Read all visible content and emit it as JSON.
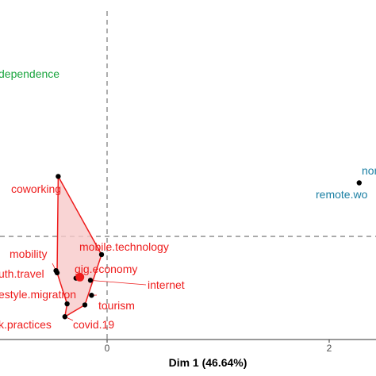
{
  "chart_data": {
    "type": "scatter",
    "title": "",
    "xlabel": "Dim 1 (46.64%)",
    "ylabel": "",
    "x_ticks": [
      0,
      2
    ],
    "xlim": [
      -0.95,
      2.4
    ],
    "ylim": [
      -1.05,
      2.1
    ],
    "reference_lines": {
      "x": 0,
      "y": 0
    },
    "grid": false,
    "colors": {
      "cluster_red": "#ee1c1c",
      "cluster_fill": "#f7c9c9",
      "blue_cluster": "#1a7fa3",
      "green_cluster": "#1aa53e",
      "dashed": "#777777",
      "axis": "#333333"
    },
    "clusters": [
      {
        "name": "",
        "color": "#ee1c1c",
        "centroid": {
          "x": -0.245,
          "y": -0.38
        },
        "hull": [
          "coworking",
          "mobile.technology",
          "tourism",
          "covid.19",
          "work.practices",
          "youth.travel"
        ],
        "points": [
          {
            "label": "coworking",
            "x": -0.44,
            "y": 0.56
          },
          {
            "label": "mobile.technology",
            "x": -0.05,
            "y": -0.17
          },
          {
            "label": "mobility",
            "x": -0.46,
            "y": -0.32
          },
          {
            "label": "youth.travel",
            "x": -0.45,
            "y": -0.34
          },
          {
            "label": "gig.economy",
            "x": -0.28,
            "y": -0.39
          },
          {
            "label": "internet",
            "x": -0.15,
            "y": -0.41
          },
          {
            "label": "lifestyle.migration",
            "x": -0.14,
            "y": -0.55
          },
          {
            "label": "tourism",
            "x": -0.2,
            "y": -0.64
          },
          {
            "label": "work.practices",
            "x": -0.36,
            "y": -0.63
          },
          {
            "label": "covid.19",
            "x": -0.38,
            "y": -0.75
          }
        ]
      },
      {
        "name": "",
        "color": "#1a7fa3",
        "points": [
          {
            "label": "nomad",
            "x": 2.27,
            "y": 0.5
          }
        ],
        "label_texts": [
          "noma",
          "remote.wo"
        ]
      },
      {
        "name": "",
        "color": "#1aa53e",
        "points": [],
        "label_texts": [
          "dependence"
        ]
      }
    ],
    "labels": {
      "coworking": "coworking",
      "mobile_technology": "mobile.technology",
      "mobility": "mobility",
      "youth_travel": "uth.travel",
      "gig_economy": "gig.economy",
      "internet": "internet",
      "lifestyle_migration": "estyle.migration",
      "tourism": "tourism",
      "work_practices": "k.practices",
      "covid_19": "covid.19",
      "nomad": "noma",
      "remote_work": "remote.wo",
      "independence": "dependence"
    }
  }
}
